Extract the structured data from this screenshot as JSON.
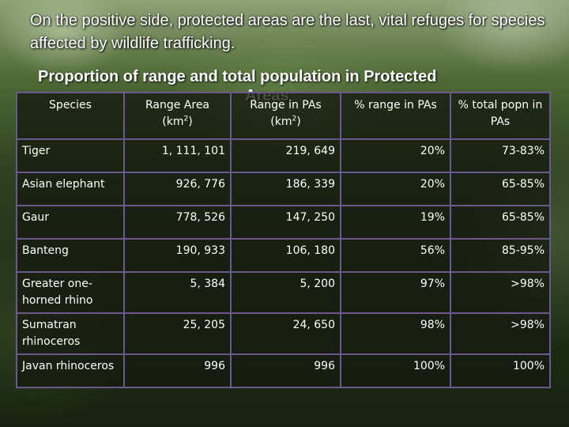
{
  "slide": {
    "headline": "On the positive side, protected areas are the last, vital refuges for species affected by wildlife trafficking.",
    "table_title_line1": "Proportion of range and total population in Protected",
    "table_title_line2": "Areas"
  },
  "table": {
    "headers": {
      "species": "Species",
      "range_area": "Range Area",
      "range_area_unit_pre": "(km",
      "range_area_unit_sup": "2",
      "range_area_unit_post": ")",
      "range_in_pas": "Range in PAs",
      "range_in_pas_unit_pre": "(km",
      "range_in_pas_unit_sup": "2",
      "range_in_pas_unit_post": ")",
      "pct_range": "% range in PAs",
      "pct_popn": "% total popn in PAs"
    },
    "rows": [
      {
        "species": "Tiger",
        "range_area": "1, 111, 101",
        "range_in_pas": "219, 649",
        "pct_range": "20%",
        "pct_popn": "73-83%"
      },
      {
        "species": "Asian elephant",
        "range_area": "926, 776",
        "range_in_pas": "186, 339",
        "pct_range": "20%",
        "pct_popn": "65-85%"
      },
      {
        "species": "Gaur",
        "range_area": "778, 526",
        "range_in_pas": "147, 250",
        "pct_range": "19%",
        "pct_popn": "65-85%"
      },
      {
        "species": "Banteng",
        "range_area": "190, 933",
        "range_in_pas": "106, 180",
        "pct_range": "56%",
        "pct_popn": "85-95%"
      },
      {
        "species": "Greater one-horned rhino",
        "range_area": "5, 384",
        "range_in_pas": "5, 200",
        "pct_range": "97%",
        "pct_popn": ">98%"
      },
      {
        "species": "Sumatran rhinoceros",
        "range_area": "25, 205",
        "range_in_pas": "24, 650",
        "pct_range": "98%",
        "pct_popn": ">98%"
      },
      {
        "species": "Javan rhinoceros",
        "range_area": "996",
        "range_in_pas": "996",
        "pct_range": "100%",
        "pct_popn": "100%"
      }
    ]
  }
}
